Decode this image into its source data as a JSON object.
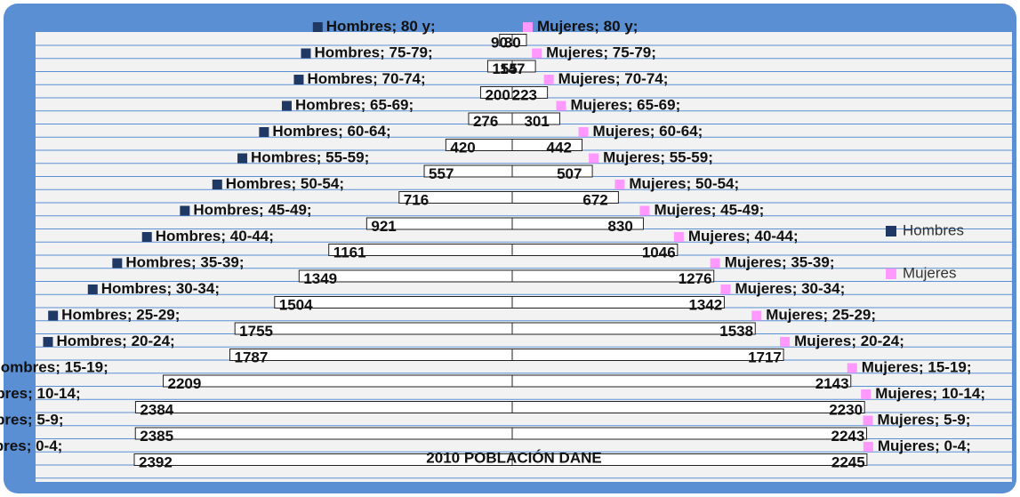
{
  "chart_data": {
    "type": "pyramid",
    "title": "2010 POBLACIÓN DANE",
    "label_separator": "; ",
    "categories": [
      "0-4",
      "5-9",
      "10-14",
      "15-19",
      "20-24",
      "25-29",
      "30-34",
      "35-39",
      "40-44",
      "45-49",
      "50-54",
      "55-59",
      "60-64",
      "65-69",
      "70-74",
      "75-79",
      "80 y"
    ],
    "series": [
      {
        "name": "Hombres",
        "color": "#1f3864",
        "side": "left",
        "values": [
          2392,
          2385,
          2384,
          2209,
          1787,
          1755,
          1504,
          1349,
          1161,
          921,
          716,
          557,
          420,
          276,
          200,
          155,
          80
        ]
      },
      {
        "name": "Mujeres",
        "color": "#ff99ff",
        "side": "right",
        "values": [
          2245,
          2243,
          2230,
          2143,
          1717,
          1538,
          1342,
          1276,
          1046,
          830,
          672,
          507,
          442,
          301,
          223,
          147,
          90
        ]
      }
    ]
  }
}
